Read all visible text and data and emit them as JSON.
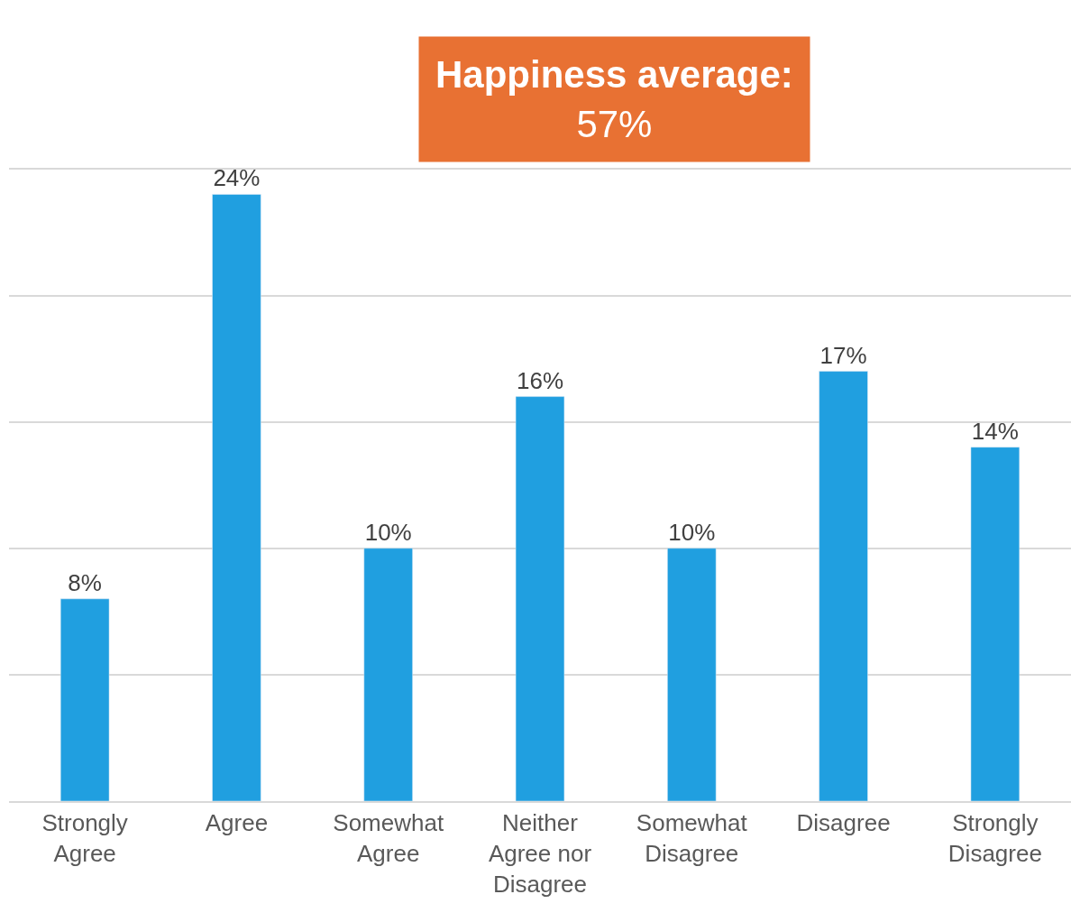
{
  "chart_data": {
    "type": "bar",
    "categories": [
      "Strongly Agree",
      "Agree",
      "Somewhat Agree",
      "Neither Agree nor Disagree",
      "Somewhat Disagree",
      "Disagree",
      "Strongly Disagree"
    ],
    "values": [
      8,
      24,
      10,
      16,
      10,
      17,
      14
    ],
    "value_labels": [
      "8%",
      "24%",
      "10%",
      "16%",
      "10%",
      "17%",
      "14%"
    ],
    "color": "#209fe0",
    "grid": "y",
    "tick_labels": "x",
    "annotations": [
      "Happiness average:\n57%"
    ]
  }
}
